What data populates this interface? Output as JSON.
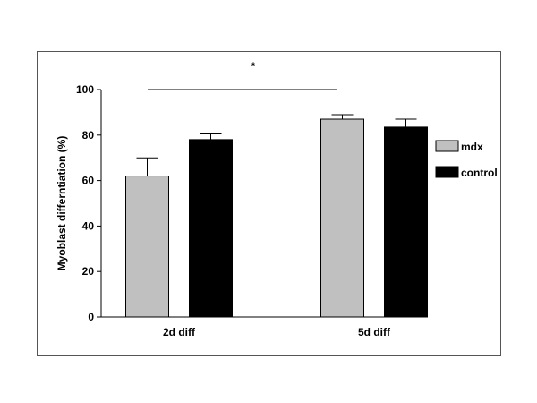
{
  "chart_data": {
    "type": "bar",
    "title": "",
    "xlabel": "",
    "ylabel": "Myoblast differntiation (%)",
    "ylim": [
      0,
      100
    ],
    "yticks": [
      0,
      20,
      40,
      60,
      80,
      100
    ],
    "categories": [
      "2d diff",
      "5d diff"
    ],
    "series": [
      {
        "name": "mdx",
        "values": [
          62,
          87
        ],
        "errors": [
          8,
          2
        ],
        "color": "#c0c0c0"
      },
      {
        "name": "control",
        "values": [
          78,
          83.5
        ],
        "errors": [
          2.5,
          3.5
        ],
        "color": "#000000"
      }
    ],
    "significance": {
      "label": "*",
      "from": "2d diff",
      "to": "5d diff"
    },
    "legend_position": "right",
    "grid": false
  }
}
